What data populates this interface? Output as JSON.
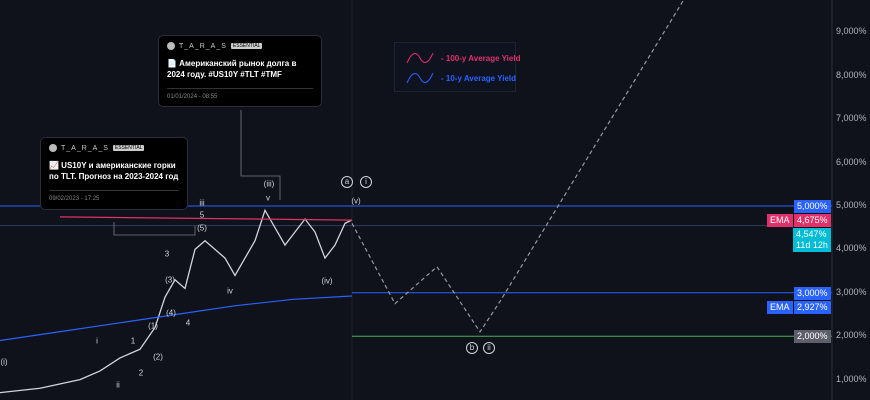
{
  "chart_data": {
    "type": "line",
    "yaxis": {
      "ticks": [
        "9,000%",
        "8,000%",
        "7,000%",
        "6,000%",
        "5,000%",
        "4,000%",
        "3,000%",
        "2,000%",
        "1,000%"
      ],
      "ylim": [
        0.65,
        9.9
      ],
      "scale": "linear"
    },
    "series": [
      {
        "kind": "price",
        "color": "#d1d4dc",
        "values": [
          0.7,
          0.8,
          1.0,
          1.2,
          1.5,
          1.7,
          2.2,
          2.9,
          3.3,
          3.1,
          4.0,
          4.2,
          4.0,
          3.8,
          3.4,
          3.8,
          4.2,
          4.9,
          4.5,
          4.1,
          4.4,
          4.7,
          4.4,
          3.8,
          4.1,
          4.6,
          4.68
        ]
      },
      {
        "kind": "projection",
        "style": "dashed",
        "color": "#9598a1",
        "values": [
          4.6,
          2.75,
          3.6,
          2.1,
          2.8,
          9.8
        ]
      },
      {
        "name": "100-y Average Yield",
        "color": "#e0316a",
        "values": [
          4.75,
          4.675
        ]
      },
      {
        "name": "10-y Average Yield",
        "color": "#2962ff",
        "values": [
          1.9,
          2.1,
          2.3,
          2.5,
          2.7,
          2.85,
          2.927
        ]
      }
    ],
    "horizontal_lines": [
      {
        "value": 5.0,
        "color": "#2962ff"
      },
      {
        "value": 4.547,
        "color": "#2a3f5f"
      },
      {
        "value": 3.0,
        "color": "#2962ff"
      },
      {
        "value": 2.0,
        "color": "#4caf50"
      }
    ],
    "price_tags": [
      {
        "label": "5,000%",
        "color": "#2962ff",
        "value": 5.0
      },
      {
        "prefix": "EMA",
        "label": "4,675%",
        "color": "#e0316a",
        "value": 4.675
      },
      {
        "label": "4,547%",
        "sub": "11d 12h",
        "color": "#00bcd4",
        "value": 4.547
      },
      {
        "label": "3,000%",
        "color": "#2962ff",
        "value": 3.0
      },
      {
        "prefix": "EMA",
        "label": "2,927%",
        "color": "#2962ff",
        "value": 2.927
      },
      {
        "label": "2,000%",
        "color": "#5d606b",
        "value": 2.0
      }
    ],
    "wave_labels": [
      "(i)",
      "ii",
      "i",
      "(1)",
      "(2)",
      "(3)",
      "(4)",
      "(5)",
      "1",
      "2",
      "3",
      "4",
      "5",
      "iii",
      "iv",
      "(iii)",
      "v",
      "(iv)",
      "(v)",
      "a",
      "i",
      "b",
      "ii"
    ],
    "legend": {
      "placement": "top-center",
      "entries": [
        "- 100-y Average Yield",
        "- 10-y Average Yield"
      ]
    }
  },
  "cards": [
    {
      "user": "T_A_R_A_S",
      "badge": "ESSENTIAL",
      "text": "📄 Американский рынок долга в 2024 году. #US10Y #TLT #TMF",
      "date": "01/01/2024 - 08:55"
    },
    {
      "user": "T_A_R_A_S",
      "badge": "ESSENTIAL",
      "text": "📈 US10Y и американские горки по TLT. Прогноз на 2023-2024 год",
      "date": "09/02/2023 - 17:25"
    }
  ]
}
